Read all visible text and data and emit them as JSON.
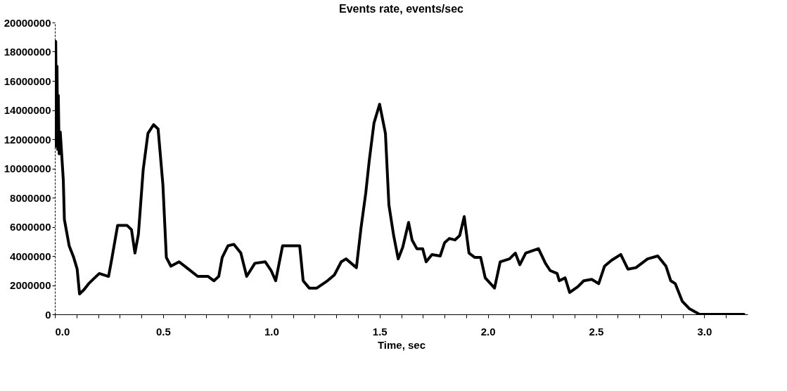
{
  "chart_data": {
    "type": "line",
    "title": "Events rate, events/sec",
    "xlabel": "Time, sec",
    "x": [
      0.0,
      0.004,
      0.007,
      0.01,
      0.013,
      0.016,
      0.02,
      0.025,
      0.039,
      0.044,
      0.066,
      0.087,
      0.103,
      0.114,
      0.135,
      0.156,
      0.205,
      0.248,
      0.263,
      0.29,
      0.333,
      0.354,
      0.37,
      0.386,
      0.408,
      0.43,
      0.456,
      0.477,
      0.499,
      0.515,
      0.536,
      0.574,
      0.617,
      0.66,
      0.708,
      0.735,
      0.757,
      0.773,
      0.8,
      0.827,
      0.859,
      0.886,
      0.924,
      0.972,
      0.999,
      1.02,
      1.052,
      1.131,
      1.147,
      1.175,
      1.21,
      1.259,
      1.291,
      1.323,
      1.345,
      1.393,
      1.414,
      1.436,
      1.452,
      1.474,
      1.5,
      1.527,
      1.543,
      1.565,
      1.586,
      1.607,
      1.634,
      1.65,
      1.672,
      1.699,
      1.715,
      1.742,
      1.78,
      1.8,
      1.822,
      1.848,
      1.87,
      1.891,
      1.913,
      1.94,
      1.967,
      1.988,
      2.031,
      2.057,
      2.1,
      2.127,
      2.148,
      2.175,
      2.234,
      2.266,
      2.288,
      2.32,
      2.33,
      2.357,
      2.378,
      2.416,
      2.443,
      2.48,
      2.512,
      2.539,
      2.571,
      2.614,
      2.647,
      2.684,
      2.738,
      2.785,
      2.823,
      2.845,
      2.866,
      2.898,
      2.93,
      2.978,
      3.183
    ],
    "series": [
      {
        "color": "#000000",
        "values": [
          11500000,
          18700000,
          12000000,
          17000000,
          11300000,
          15000000,
          11000000,
          12500000,
          9200000,
          6500000,
          4700000,
          3900000,
          3100000,
          1400000,
          1700000,
          2100000,
          2800000,
          2600000,
          3800000,
          6100000,
          6100000,
          5800000,
          4200000,
          5500000,
          9900000,
          12400000,
          13000000,
          12700000,
          8900000,
          3900000,
          3300000,
          3600000,
          3100000,
          2600000,
          2600000,
          2300000,
          2600000,
          3900000,
          4700000,
          4800000,
          4200000,
          2600000,
          3500000,
          3600000,
          3000000,
          2300000,
          4700000,
          4700000,
          2300000,
          1800000,
          1800000,
          2300000,
          2700000,
          3600000,
          3800000,
          3200000,
          5900000,
          8300000,
          10500000,
          13100000,
          14400000,
          12400000,
          7500000,
          5400000,
          3800000,
          4600000,
          6300000,
          5100000,
          4500000,
          4500000,
          3600000,
          4100000,
          4000000,
          4900000,
          5200000,
          5100000,
          5400000,
          6700000,
          4200000,
          3900000,
          3900000,
          2500000,
          1800000,
          3600000,
          3800000,
          4200000,
          3400000,
          4200000,
          4500000,
          3500000,
          3000000,
          2800000,
          2300000,
          2500000,
          1500000,
          1900000,
          2300000,
          2400000,
          2100000,
          3300000,
          3700000,
          4100000,
          3100000,
          3200000,
          3800000,
          4000000,
          3300000,
          2300000,
          2100000,
          900000,
          400000,
          0,
          0
        ]
      }
    ],
    "xlim": [
      0,
      3.2
    ],
    "ylim": [
      0,
      20000000
    ],
    "xticks": [
      {
        "value": 0,
        "label": "0.0"
      },
      {
        "value": 0.1,
        "label": null
      },
      {
        "value": 0.2,
        "label": null
      },
      {
        "value": 0.3,
        "label": null
      },
      {
        "value": 0.4,
        "label": null
      },
      {
        "value": 0.5,
        "label": "0.5"
      },
      {
        "value": 0.6,
        "label": null
      },
      {
        "value": 0.7,
        "label": null
      },
      {
        "value": 0.8,
        "label": null
      },
      {
        "value": 0.9,
        "label": null
      },
      {
        "value": 1,
        "label": "1.0"
      },
      {
        "value": 1.1,
        "label": null
      },
      {
        "value": 1.2,
        "label": null
      },
      {
        "value": 1.3,
        "label": null
      },
      {
        "value": 1.4,
        "label": null
      },
      {
        "value": 1.5,
        "label": "1.5"
      },
      {
        "value": 1.6,
        "label": null
      },
      {
        "value": 1.7,
        "label": null
      },
      {
        "value": 1.8,
        "label": null
      },
      {
        "value": 1.9,
        "label": null
      },
      {
        "value": 2,
        "label": "2.0"
      },
      {
        "value": 2.1,
        "label": null
      },
      {
        "value": 2.2,
        "label": null
      },
      {
        "value": 2.3,
        "label": null
      },
      {
        "value": 2.4,
        "label": null
      },
      {
        "value": 2.5,
        "label": "2.5"
      },
      {
        "value": 2.6,
        "label": null
      },
      {
        "value": 2.7,
        "label": null
      },
      {
        "value": 2.8,
        "label": null
      },
      {
        "value": 2.9,
        "label": null
      },
      {
        "value": 3,
        "label": "3.0"
      },
      {
        "value": 3.1,
        "label": null
      }
    ],
    "yticks": [
      0,
      2000000,
      4000000,
      6000000,
      8000000,
      10000000,
      12000000,
      14000000,
      16000000,
      18000000,
      20000000
    ],
    "grid": false,
    "marker": "none",
    "line_style": "solid"
  }
}
